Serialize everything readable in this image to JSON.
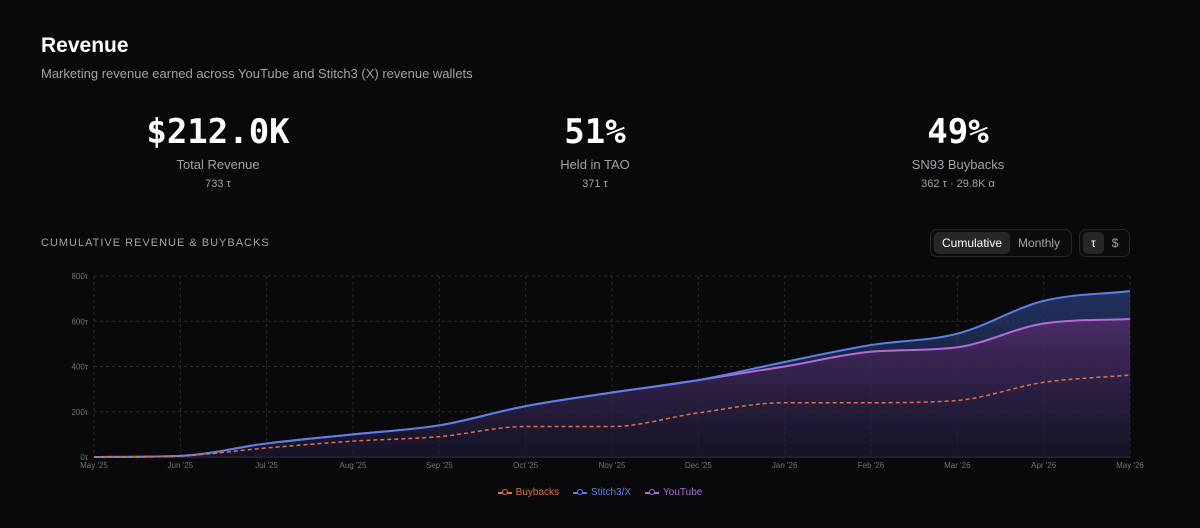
{
  "header": {
    "title": "Revenue",
    "subtitle": "Marketing revenue earned across YouTube and Stitch3 (X) revenue wallets"
  },
  "stats": [
    {
      "value": "$212.0K",
      "label": "Total Revenue",
      "sub": "733 τ"
    },
    {
      "value": "51%",
      "label": "Held in TAO",
      "sub": "371 τ"
    },
    {
      "value": "49%",
      "label": "SN93 Buybacks",
      "sub": "362 τ · 29.8K α"
    }
  ],
  "section_title": "CUMULATIVE REVENUE & BUYBACKS",
  "view_toggle": {
    "cumulative": "Cumulative",
    "monthly": "Monthly"
  },
  "unit_toggle": {
    "tao": "τ",
    "usd": "$"
  },
  "colors": {
    "buybacks": "#e0704a",
    "stitch3": "#5b7fe8",
    "youtube": "#b46bd6",
    "grid": "#2a2a2e",
    "background": "#09090b"
  },
  "chart_data": {
    "type": "area",
    "categories": [
      "May '25",
      "Jun '25",
      "Jul '25",
      "Aug '25",
      "Sep '25",
      "Oct '25",
      "Nov '25",
      "Dec '25",
      "Jan '26",
      "Feb '26",
      "Mar '26",
      "Apr '26",
      "May '26"
    ],
    "series": [
      {
        "name": "Buybacks",
        "style": "dashed",
        "values": [
          0,
          5,
          40,
          70,
          90,
          135,
          135,
          195,
          240,
          240,
          250,
          330,
          362
        ]
      },
      {
        "name": "Stitch3/X",
        "style": "area",
        "values": [
          0,
          5,
          60,
          100,
          140,
          225,
          285,
          340,
          420,
          495,
          545,
          690,
          733
        ]
      },
      {
        "name": "YouTube",
        "style": "area",
        "values": [
          0,
          5,
          60,
          100,
          140,
          225,
          285,
          340,
          400,
          465,
          485,
          590,
          610
        ]
      }
    ],
    "yticks": [
      "0τ",
      "200τ",
      "400τ",
      "600τ",
      "800τ"
    ],
    "ylim": [
      0,
      800
    ],
    "grid": true,
    "legend": "bottom-center"
  }
}
